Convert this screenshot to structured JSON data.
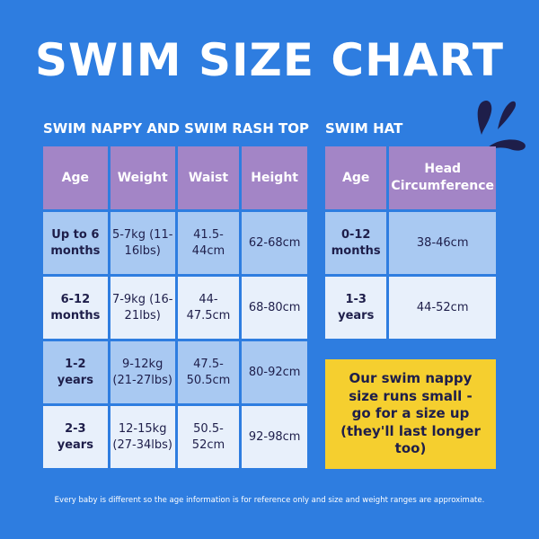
{
  "title": "SWIM SIZE CHART",
  "nappy": {
    "heading": "SWIM NAPPY AND SWIM RASH TOP",
    "headers": [
      "Age",
      "Weight",
      "Waist",
      "Height"
    ],
    "rows": [
      [
        "Up to 6 months",
        "5-7kg (11-16lbs)",
        "41.5-44cm",
        "62-68cm"
      ],
      [
        "6-12 months",
        "7-9kg (16-21lbs)",
        "44-47.5cm",
        "68-80cm"
      ],
      [
        "1-2 years",
        "9-12kg (21-27lbs)",
        "47.5-50.5cm",
        "80-92cm"
      ],
      [
        "2-3 years",
        "12-15kg (27-34lbs)",
        "50.5-52cm",
        "92-98cm"
      ]
    ]
  },
  "hat": {
    "heading": "SWIM HAT",
    "headers": [
      "Age",
      "Head Circumference"
    ],
    "rows": [
      [
        "0-12 months",
        "38-46cm"
      ],
      [
        "1-3 years",
        "44-52cm"
      ]
    ]
  },
  "note": "Our swim nappy size runs small - go for a size up (they'll last longer too)",
  "footer": "Every baby is different so the age information is for reference only and size and weight ranges are approximate.",
  "colors": {
    "background": "#2e7de0",
    "header": "#a385c6",
    "row_dark": "#a9c9f2",
    "row_light": "#e8f0fb",
    "note": "#f5cf2f",
    "text": "#1e1e4a"
  },
  "decoration": "splash-icon"
}
